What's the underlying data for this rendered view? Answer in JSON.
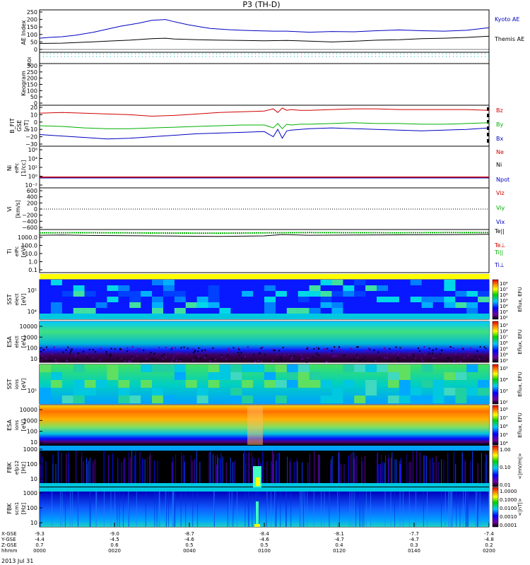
{
  "figure": {
    "title": "P3 (TH-D)",
    "date": "2013 Jul 31"
  },
  "colors": {
    "red": "#d00000",
    "green": "#00b000",
    "blue": "#0000c0",
    "black": "#000000",
    "yellow": "#ffff00"
  },
  "chart_data": [
    {
      "type": "line",
      "panel": "ae",
      "ylabel": "AE Index",
      "ylim": [
        0,
        250
      ],
      "yticks": [
        "250",
        "200",
        "150",
        "100",
        "50",
        "0"
      ],
      "legend": [
        "Kyoto AE",
        "Themis AE"
      ],
      "series": [
        {
          "name": "Kyoto AE",
          "color": "#0000c0",
          "x": [
            0,
            2,
            5,
            8,
            12,
            15,
            18,
            22,
            25,
            28,
            30,
            33,
            36,
            38,
            42,
            45,
            48,
            52,
            55,
            58,
            60,
            65,
            70,
            75,
            80,
            85,
            90,
            95,
            100
          ],
          "values": [
            75,
            80,
            85,
            95,
            115,
            135,
            155,
            175,
            195,
            200,
            185,
            165,
            150,
            140,
            132,
            128,
            125,
            122,
            122,
            118,
            115,
            120,
            118,
            125,
            130,
            125,
            122,
            128,
            145
          ]
        },
        {
          "name": "Themis AE",
          "color": "#000000",
          "x": [
            0,
            5,
            10,
            15,
            20,
            25,
            28,
            30,
            35,
            40,
            45,
            50,
            55,
            60,
            65,
            70,
            75,
            80,
            85,
            90,
            95,
            100
          ],
          "values": [
            40,
            42,
            48,
            55,
            62,
            72,
            75,
            70,
            65,
            62,
            60,
            58,
            60,
            55,
            50,
            55,
            62,
            65,
            72,
            75,
            80,
            88
          ]
        }
      ]
    },
    {
      "type": "line",
      "panel": "roi",
      "ylabel": "ROI"
    },
    {
      "type": "line",
      "panel": "keogram",
      "ylabel": "Keogram",
      "ylim": [
        0,
        300
      ],
      "yticks": [
        "300",
        "250",
        "200",
        "150",
        "100",
        "50",
        "0"
      ]
    },
    {
      "type": "line",
      "panel": "bfield",
      "ylabel": "B_FIT",
      "ylabel2": "GSE",
      "ylabel3": "[nT]",
      "ylim": [
        -30,
        20
      ],
      "yticks": [
        "20",
        "10",
        "0",
        "−10",
        "−20",
        "−30"
      ],
      "legend": [
        "Bz",
        "By",
        "Bx"
      ],
      "series": [
        {
          "name": "Bz",
          "color": "#d00000",
          "x": [
            0,
            5,
            10,
            15,
            20,
            25,
            30,
            35,
            40,
            45,
            50,
            52,
            53,
            54,
            55,
            56,
            58,
            60,
            65,
            70,
            75,
            80,
            85,
            90,
            95,
            100
          ],
          "values": [
            12,
            13,
            12,
            11,
            10,
            8,
            9,
            11,
            13,
            14,
            15,
            18,
            13,
            19,
            16,
            17,
            16,
            16,
            17,
            18,
            18,
            17,
            17,
            17,
            17,
            16
          ]
        },
        {
          "name": "By",
          "color": "#00b000",
          "x": [
            0,
            5,
            10,
            15,
            20,
            25,
            30,
            35,
            40,
            45,
            50,
            52,
            53,
            54,
            55,
            56,
            58,
            60,
            65,
            70,
            75,
            80,
            85,
            90,
            95,
            100
          ],
          "values": [
            -5,
            -6,
            -8,
            -9,
            -9,
            -8,
            -7,
            -6,
            -5,
            -4,
            -4,
            -8,
            -2,
            -9,
            -3,
            -4,
            -3,
            -3,
            -2,
            -1,
            -2,
            -2,
            -3,
            -3,
            -2,
            -1
          ]
        },
        {
          "name": "Bx",
          "color": "#0000c0",
          "x": [
            0,
            5,
            10,
            15,
            20,
            25,
            30,
            35,
            40,
            45,
            50,
            52,
            53,
            54,
            55,
            56,
            58,
            60,
            65,
            70,
            75,
            80,
            85,
            90,
            95,
            100
          ],
          "values": [
            -17,
            -19,
            -21,
            -23,
            -22,
            -20,
            -18,
            -16,
            -15,
            -14,
            -13,
            -20,
            -10,
            -22,
            -12,
            -11,
            -10,
            -9,
            -8,
            -9,
            -10,
            -11,
            -12,
            -11,
            -10,
            -8
          ]
        }
      ]
    },
    {
      "type": "line",
      "panel": "density",
      "ylabel": "Ni",
      "ylabel2": "eIPc",
      "ylabel3": "[1/cc]",
      "yticks": [
        "10⁸",
        "10⁴",
        "10²",
        "10⁰",
        "10⁻²"
      ],
      "legend": [
        "Ne",
        "Ni",
        "Npot"
      ],
      "series": [
        {
          "name": "Ne",
          "color": "#d00000",
          "x": [
            0,
            100
          ],
          "values": [
            0.1,
            0.1
          ]
        },
        {
          "name": "Ni",
          "color": "#000000",
          "x": [
            0,
            100
          ],
          "values": [
            0.1,
            0.1
          ]
        },
        {
          "name": "Npot",
          "color": "#0000c0",
          "x": [
            0,
            100
          ],
          "values": [
            0.1,
            0.1
          ]
        }
      ]
    },
    {
      "type": "line",
      "panel": "velocity",
      "ylabel": "Vi",
      "ylabel2": "[km/s]",
      "ylim": [
        -600,
        600
      ],
      "yticks": [
        "600",
        "400",
        "200",
        "0",
        "−200",
        "−400",
        "−600"
      ],
      "legend": [
        "Viz",
        "Viy",
        "Vix"
      ]
    },
    {
      "type": "line",
      "panel": "temperature",
      "ylabel": "Ti",
      "ylabel2": "eIPc",
      "ylabel3": "[eV]",
      "yticks": [
        "1000.0",
        "100.0",
        "10.0",
        "1.0",
        "0.1"
      ],
      "legend": [
        "Te||",
        "Te⊥",
        "Ti||",
        "Ti⊥"
      ],
      "series": [
        {
          "name": "Te||",
          "color": "#000000",
          "x": [
            0,
            5,
            10,
            20,
            30,
            40,
            50,
            54,
            60,
            70,
            80,
            90,
            100
          ],
          "values": [
            1800,
            1900,
            1700,
            1600,
            1400,
            1300,
            1500,
            2200,
            1800,
            1900,
            2000,
            2100,
            2300
          ]
        },
        {
          "name": "Ti||",
          "color": "#00b000",
          "x": [
            0,
            10,
            20,
            30,
            40,
            50,
            60,
            70,
            80,
            90,
            100
          ],
          "values": [
            3500,
            3700,
            3500,
            3300,
            3200,
            3500,
            3800,
            3700,
            3600,
            3800,
            3900
          ]
        }
      ]
    },
    {
      "type": "heatmap",
      "panel": "sst_e",
      "ylabel": "SST",
      "ylabel2": "elect",
      "ylabel3": "[eV]",
      "yticks": [
        "10⁵",
        "10⁴"
      ],
      "colorbar": {
        "label": "Eflux, EFU",
        "ticks": [
          "10⁸",
          "10⁷",
          "10⁶",
          "10⁵",
          "10⁴",
          "10³",
          "10²"
        ]
      }
    },
    {
      "type": "heatmap",
      "panel": "esa_e",
      "ylabel": "ESA",
      "ylabel2": "elect",
      "ylabel3": "[eV]",
      "yticks": [
        "10000",
        "1000",
        "100",
        "10"
      ],
      "colorbar": {
        "label": "Eflux, EFU",
        "ticks": [
          "10⁹",
          "10⁸",
          "10⁷",
          "10⁶",
          "10⁵",
          "10⁴",
          "10³"
        ]
      }
    },
    {
      "type": "heatmap",
      "panel": "sst_i",
      "ylabel": "SST",
      "ylabel2": "ions",
      "ylabel3": "[eV]",
      "yticks": [
        "10⁵"
      ],
      "colorbar": {
        "label": "Eflux, EFU",
        "ticks": [
          "10⁵",
          "10⁴",
          "10³",
          "10²"
        ]
      }
    },
    {
      "type": "heatmap",
      "panel": "esa_i",
      "ylabel": "ESA",
      "ylabel2": "ions",
      "ylabel3": "[eV]",
      "yticks": [
        "10000",
        "1000",
        "100",
        "10"
      ],
      "colorbar": {
        "label": "Eflux, EFU",
        "ticks": [
          "10⁸",
          "10⁷",
          "10⁶",
          "10⁵",
          "10⁴"
        ]
      }
    },
    {
      "type": "heatmap",
      "panel": "fbk_e",
      "ylabel": "FBK",
      "ylabel2": "efp12",
      "ylabel3": "[Hz]",
      "yticks": [
        "1000",
        "100",
        "10"
      ],
      "colorbar": {
        "label": "<|mV/m|>",
        "ticks": [
          "1.00",
          "0.10",
          "0.01"
        ]
      }
    },
    {
      "type": "heatmap",
      "panel": "fbk_b",
      "ylabel": "FBK",
      "ylabel2": "scm1",
      "ylabel3": "[Hz]",
      "yticks": [
        "1000",
        "100",
        "10"
      ],
      "colorbar": {
        "label": "<|nT|>",
        "ticks": [
          "1.0000",
          "0.1000",
          "0.0100",
          "0.0010",
          "0.0001"
        ]
      }
    }
  ],
  "axis": {
    "row_labels": [
      "X-GSE",
      "Y-GSE",
      "Z-GSE",
      "hhmm"
    ],
    "columns": [
      {
        "x": "-9.3",
        "y": "-4.4",
        "z": "0.7",
        "t": "0000"
      },
      {
        "x": "-9.0",
        "y": "-4.5",
        "z": "0.6",
        "t": "0020"
      },
      {
        "x": "-8.7",
        "y": "-4.6",
        "z": "0.5",
        "t": "0040"
      },
      {
        "x": "-8.4",
        "y": "-4.6",
        "z": "0.5",
        "t": "0100"
      },
      {
        "x": "-8.1",
        "y": "-4.7",
        "z": "0.4",
        "t": "0120"
      },
      {
        "x": "-7.7",
        "y": "-4.7",
        "z": "0.3",
        "t": "0140"
      },
      {
        "x": "-7.4",
        "y": "-4.8",
        "z": "0.2",
        "t": "0200"
      }
    ]
  }
}
